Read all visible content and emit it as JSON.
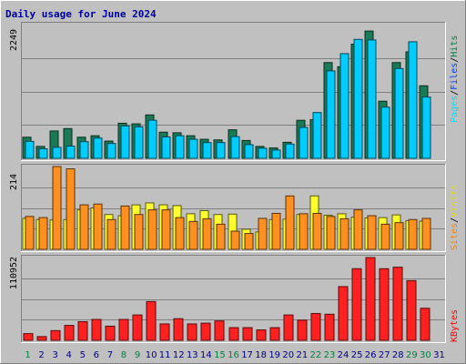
{
  "chart_data": {
    "type": "bar",
    "title": "Daily usage for June 2024",
    "categories": [
      "1",
      "2",
      "3",
      "4",
      "5",
      "6",
      "7",
      "8",
      "9",
      "10",
      "11",
      "12",
      "13",
      "14",
      "15",
      "16",
      "17",
      "18",
      "19",
      "20",
      "21",
      "22",
      "23",
      "24",
      "25",
      "26",
      "27",
      "28",
      "29",
      "30",
      "31"
    ],
    "weekend_days": [
      "1",
      "8",
      "9",
      "15",
      "16",
      "22",
      "23",
      "29",
      "30"
    ],
    "panels": [
      {
        "name": "pages-files-hits",
        "ymax": 2249,
        "ymax_label": "2249",
        "legend": [
          {
            "label": "Hits",
            "color": "#008040"
          },
          {
            "label": "/",
            "color": "#000000"
          },
          {
            "label": "Files",
            "color": "#0040ff"
          },
          {
            "label": "/",
            "color": "#000000"
          },
          {
            "label": "Pages",
            "color": "#00e0ff"
          }
        ],
        "series": [
          {
            "name": "Hits",
            "color": "#1a7a56",
            "values": [
              355,
              200,
              460,
              500,
              355,
              380,
              290,
              590,
              580,
              730,
              440,
              430,
              380,
              320,
              310,
              480,
              300,
              200,
              175,
              270,
              640,
              650,
              1610,
              1540,
              1920,
              2140,
              960,
              1610,
              1790,
              1220
            ]
          },
          {
            "name": "Files",
            "color": "#00ccff",
            "values": [
              285,
              160,
              185,
              205,
              280,
              340,
              250,
              545,
              530,
              640,
              360,
              380,
              320,
              265,
              265,
              365,
              230,
              170,
              140,
              240,
              520,
              770,
              1470,
              1760,
              2000,
              1990,
              860,
              1510,
              1960,
              1030
            ]
          }
        ]
      },
      {
        "name": "visits-sites",
        "ymax": 214,
        "ymax_label": "214",
        "legend": [
          {
            "label": "Visits",
            "color": "#e0e000"
          },
          {
            "label": "/",
            "color": "#000000"
          },
          {
            "label": "Sites",
            "color": "#ff8000"
          }
        ],
        "series": [
          {
            "name": "Visits",
            "color": "#ffff30",
            "values": [
              80,
              77,
              76,
              77,
              102,
              107,
              90,
              87,
              115,
              120,
              115,
              113,
              92,
              100,
              90,
              91,
              52,
              45,
              77,
              78,
              90,
              138,
              88,
              92,
              83,
              81,
              82,
              89,
              74,
              73
            ]
          },
          {
            "name": "Sites",
            "color": "#ff9020",
            "values": [
              85,
              82,
              214,
              208,
              115,
              117,
              77,
              112,
              90,
              102,
              102,
              82,
              72,
              79,
              65,
              47,
              41,
              80,
              93,
              138,
              92,
              93,
              85,
              79,
              102,
              87,
              65,
              69,
              77,
              80
            ]
          }
        ]
      },
      {
        "name": "kbytes",
        "ymax": 110952,
        "ymax_label": "110952",
        "legend": [
          {
            "label": "KBytes",
            "color": "#ff0000"
          }
        ],
        "series": [
          {
            "name": "KBytes",
            "color": "#ff2020",
            "values": [
              9000,
              5000,
              13000,
              20000,
              25000,
              28000,
              19000,
              28000,
              34000,
              52000,
              22000,
              29000,
              22000,
              23000,
              26000,
              17000,
              17000,
              14000,
              17000,
              34000,
              27000,
              36000,
              35000,
              72000,
              96000,
              110952,
              96000,
              98000,
              80000,
              43000
            ]
          }
        ]
      }
    ]
  }
}
